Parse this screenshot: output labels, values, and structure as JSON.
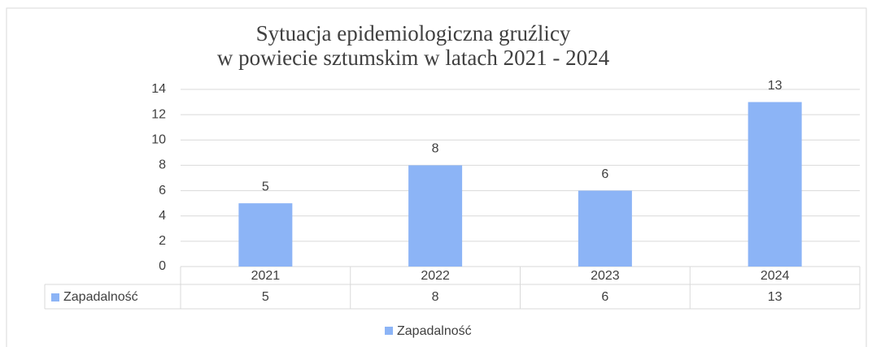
{
  "chart_data": {
    "type": "bar",
    "title": [
      "Sytuacja epidemiologiczna gruźlicy",
      "w powiecie sztumskim w latach 2021 - 2024"
    ],
    "categories": [
      "2021",
      "2022",
      "2023",
      "2024"
    ],
    "series": [
      {
        "name": "Zapadalność",
        "color": "#8cb4f6",
        "values": [
          5,
          8,
          6,
          13
        ]
      }
    ],
    "ylim": [
      0,
      14
    ],
    "yticks": [
      0,
      2,
      4,
      6,
      8,
      10,
      12,
      14
    ],
    "grid": true,
    "legend": "bottom"
  }
}
